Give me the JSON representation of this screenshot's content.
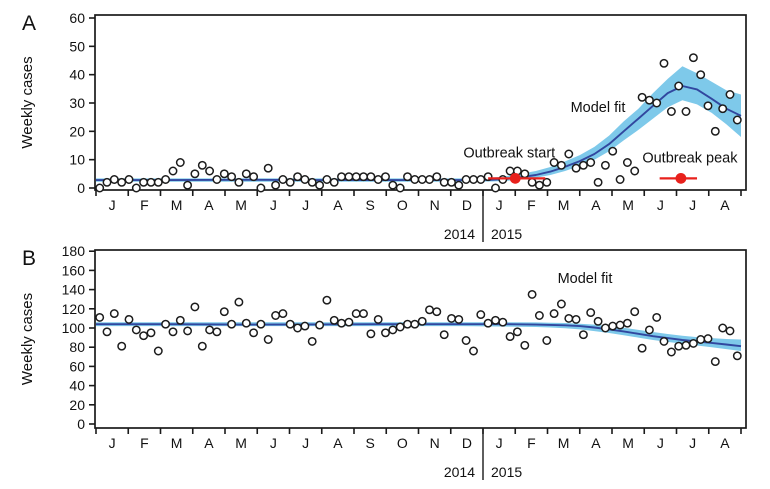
{
  "figure_title": "",
  "colors": {
    "background": "#ffffff",
    "confidence_band": "#7ec9ea",
    "model_line": "#31479f",
    "model_label_text": "#34349c",
    "annotation_red": "#e8211c",
    "point_fill": "#ffffff",
    "point_stroke": "#1c1c1c",
    "axis": "#1a1a1a"
  },
  "chart_data": [
    {
      "panel": "A",
      "type": "scatter",
      "ylabel": "Weekly cases",
      "ylim": [
        0,
        60
      ],
      "y_ticks": [
        0,
        10,
        20,
        30,
        40,
        50,
        60
      ],
      "x_months": [
        "J",
        "F",
        "M",
        "A",
        "M",
        "J",
        "J",
        "A",
        "S",
        "O",
        "N",
        "D",
        "J",
        "F",
        "M",
        "A",
        "M",
        "J",
        "J",
        "A"
      ],
      "years": [
        "2014",
        "2015"
      ],
      "grid": false,
      "weekly_cases": [
        0,
        2,
        3,
        2,
        3,
        0,
        2,
        2,
        2,
        3,
        6,
        9,
        1,
        5,
        8,
        6,
        3,
        5,
        4,
        2,
        5,
        4,
        0,
        7,
        1,
        3,
        2,
        4,
        3,
        2,
        1,
        3,
        2,
        4,
        4,
        4,
        4,
        4,
        3,
        4,
        1,
        0,
        4,
        3,
        3,
        3,
        4,
        2,
        2,
        1,
        3,
        3,
        3,
        4,
        0,
        3,
        6,
        6,
        5,
        2,
        1,
        2,
        9,
        8,
        12,
        7,
        8,
        9,
        2,
        8,
        13,
        3,
        9,
        6,
        32,
        31,
        30,
        44,
        27,
        36,
        27,
        46,
        40,
        29,
        20,
        28,
        33,
        24
      ],
      "model_fit": {
        "label": "Model fit",
        "points": [
          [
            0,
            2.8
          ],
          [
            10,
            2.8
          ],
          [
            20,
            2.9
          ],
          [
            30,
            2.8
          ],
          [
            40,
            2.8
          ],
          [
            50,
            2.8
          ],
          [
            54,
            2.9
          ],
          [
            56,
            3.2
          ],
          [
            58,
            3.8
          ],
          [
            60,
            4.6
          ],
          [
            62,
            5.8
          ],
          [
            64,
            7.5
          ],
          [
            66,
            9.5
          ],
          [
            68,
            12
          ],
          [
            70,
            15.5
          ],
          [
            72,
            20
          ],
          [
            74,
            24.5
          ],
          [
            76,
            29
          ],
          [
            78,
            33.5
          ],
          [
            80,
            36
          ],
          [
            82,
            34.8
          ],
          [
            84,
            31.5
          ],
          [
            86,
            28
          ],
          [
            88,
            25.5
          ]
        ]
      },
      "confidence_band": [
        [
          0,
          2.2,
          3.4
        ],
        [
          50,
          2.2,
          3.4
        ],
        [
          54,
          2.3,
          3.6
        ],
        [
          56,
          2.5,
          4.2
        ],
        [
          58,
          3,
          5
        ],
        [
          60,
          3.6,
          6
        ],
        [
          62,
          4.6,
          7.4
        ],
        [
          64,
          6,
          9.4
        ],
        [
          66,
          7.8,
          11.6
        ],
        [
          68,
          10,
          14.5
        ],
        [
          70,
          13,
          18.5
        ],
        [
          72,
          16.8,
          23.5
        ],
        [
          74,
          20.5,
          28
        ],
        [
          76,
          24.5,
          33.5
        ],
        [
          78,
          28.5,
          38.5
        ],
        [
          80,
          31,
          43
        ],
        [
          82,
          29.5,
          40.5
        ],
        [
          84,
          26.5,
          37.5
        ],
        [
          86,
          22.5,
          34.5
        ],
        [
          88,
          18,
          33
        ]
      ],
      "annotations": [
        {
          "text": "Outbreak start",
          "dot_week": 57.2,
          "dot_value": 3.4,
          "ci_weeks": [
            53.5,
            61.3
          ]
        },
        {
          "text": "Outbreak peak",
          "dot_week": 79.8,
          "dot_value": 3.4,
          "ci_weeks": [
            76.9,
            82.0
          ]
        }
      ]
    },
    {
      "panel": "B",
      "type": "scatter",
      "ylabel": "Weekly cases",
      "ylim": [
        0,
        180
      ],
      "y_ticks": [
        0,
        20,
        40,
        60,
        80,
        100,
        120,
        140,
        160,
        180
      ],
      "x_months": [
        "J",
        "F",
        "M",
        "A",
        "M",
        "J",
        "J",
        "A",
        "S",
        "O",
        "N",
        "D",
        "J",
        "F",
        "M",
        "A",
        "M",
        "J",
        "J",
        "A"
      ],
      "years": [
        "2014",
        "2015"
      ],
      "grid": false,
      "weekly_cases": [
        111,
        96,
        115,
        81,
        109,
        98,
        92,
        95,
        76,
        104,
        96,
        108,
        97,
        122,
        81,
        98,
        96,
        117,
        104,
        127,
        105,
        95,
        104,
        88,
        113,
        115,
        104,
        100,
        102,
        86,
        103,
        129,
        108,
        105,
        106,
        115,
        115,
        94,
        109,
        95,
        98,
        101,
        104,
        104,
        107,
        119,
        117,
        93,
        110,
        109,
        87,
        76,
        114,
        105,
        108,
        106,
        91,
        96,
        82,
        135,
        113,
        87,
        115,
        125,
        110,
        109,
        93,
        116,
        107,
        100,
        102,
        103,
        105,
        117,
        79,
        98,
        111,
        86,
        75,
        81,
        82,
        84,
        88,
        89,
        65,
        100,
        97,
        71
      ],
      "model_fit": {
        "label": "Model fit",
        "points": [
          [
            0,
            104
          ],
          [
            10,
            104
          ],
          [
            20,
            103.5
          ],
          [
            30,
            103.8
          ],
          [
            40,
            104
          ],
          [
            50,
            104
          ],
          [
            56,
            104
          ],
          [
            60,
            103.5
          ],
          [
            62,
            103.2
          ],
          [
            64,
            102.8
          ],
          [
            66,
            102
          ],
          [
            68,
            100.5
          ],
          [
            70,
            98.5
          ],
          [
            72,
            96.5
          ],
          [
            74,
            94
          ],
          [
            76,
            91.5
          ],
          [
            78,
            89.5
          ],
          [
            80,
            87.5
          ],
          [
            82,
            86
          ],
          [
            84,
            84.5
          ],
          [
            86,
            82.8
          ],
          [
            88,
            81
          ]
        ]
      },
      "confidence_band": [
        [
          0,
          102,
          106
        ],
        [
          50,
          102,
          106
        ],
        [
          56,
          101.5,
          106
        ],
        [
          60,
          101,
          105.8
        ],
        [
          62,
          100.5,
          105.5
        ],
        [
          64,
          99.8,
          105.2
        ],
        [
          66,
          98.5,
          104.5
        ],
        [
          68,
          96.8,
          103.5
        ],
        [
          70,
          94.8,
          102
        ],
        [
          72,
          92.5,
          100.3
        ],
        [
          74,
          90,
          98
        ],
        [
          76,
          87.5,
          95.8
        ],
        [
          78,
          85.5,
          93.8
        ],
        [
          80,
          83.5,
          92
        ],
        [
          82,
          81.8,
          90.5
        ],
        [
          84,
          80,
          89.5
        ],
        [
          86,
          78,
          88.5
        ],
        [
          88,
          76,
          88
        ]
      ],
      "annotations": []
    }
  ]
}
